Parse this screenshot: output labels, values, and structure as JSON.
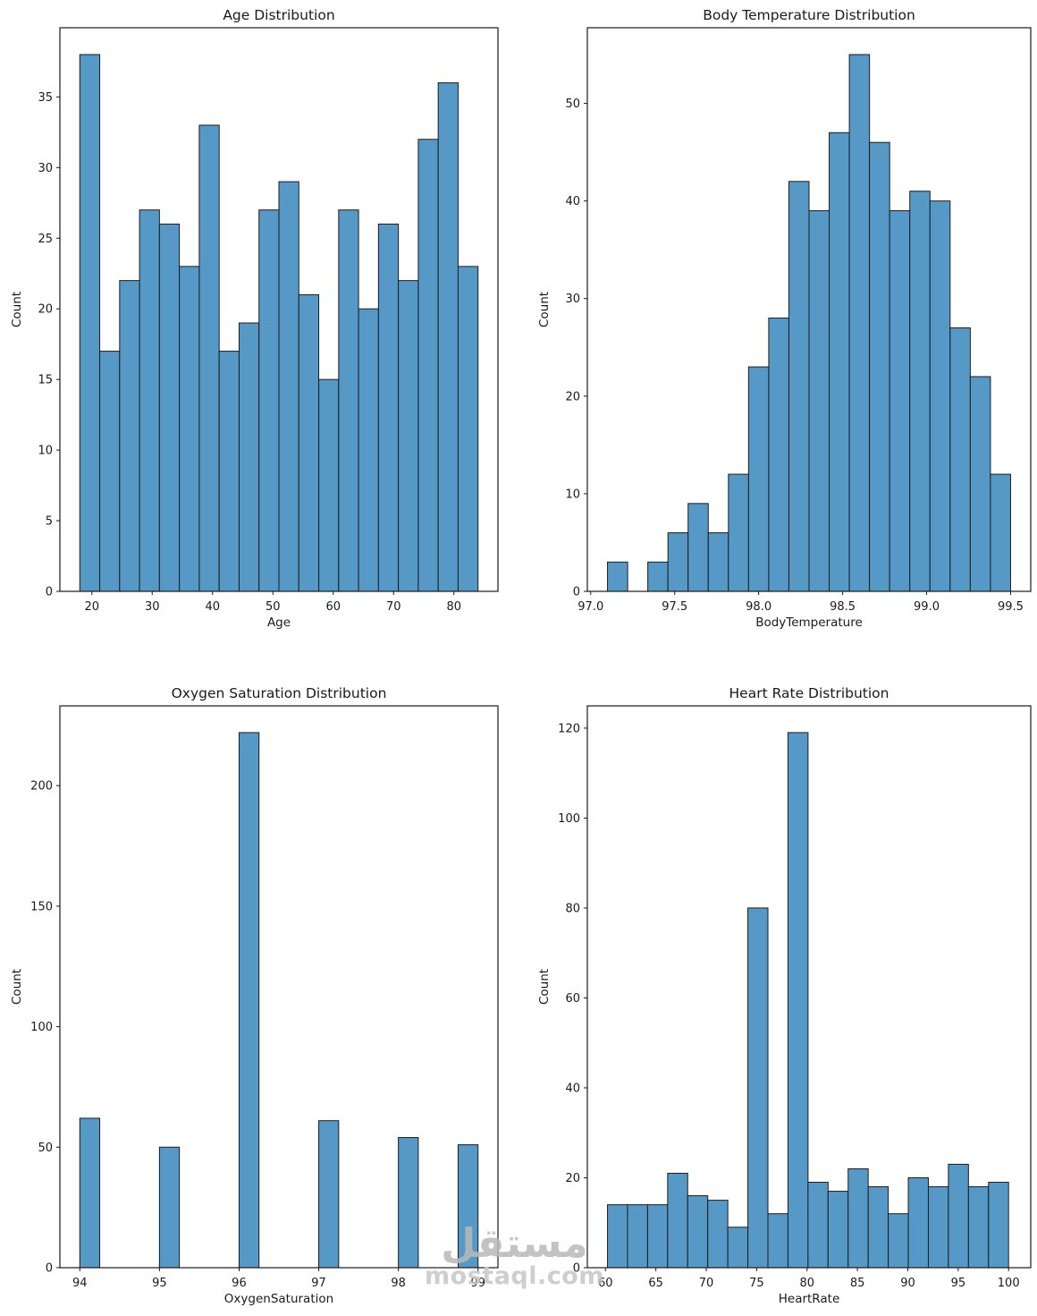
{
  "figure": {
    "background": "#ffffff",
    "bar_fill": "#5799c6",
    "bar_edge": "#1c1c1c",
    "ink": "#1a1a1a"
  },
  "watermark": {
    "arabic": "مستقل",
    "latin": "mostaql.com"
  },
  "chart_data": [
    {
      "type": "bar",
      "title": "Age Distribution",
      "xlabel": "Age",
      "ylabel": "Count",
      "bins": {
        "start": 18,
        "width": 3.3
      },
      "values": [
        38,
        17,
        22,
        27,
        26,
        23,
        33,
        17,
        19,
        27,
        29,
        21,
        15,
        27,
        20,
        26,
        22,
        32,
        36,
        23
      ],
      "xlim": [
        14.7,
        87.3
      ],
      "ylim": [
        0,
        39.9
      ],
      "xticks": [
        20,
        30,
        40,
        50,
        60,
        70,
        80
      ],
      "xtick_labels": [
        "20",
        "30",
        "40",
        "50",
        "60",
        "70",
        "80"
      ],
      "yticks": [
        0,
        5,
        10,
        15,
        20,
        25,
        30,
        35
      ],
      "ytick_labels": [
        "0",
        "5",
        "10",
        "15",
        "20",
        "25",
        "30",
        "35"
      ],
      "grid": false,
      "legend": "none"
    },
    {
      "type": "bar",
      "title": "Body Temperature Distribution",
      "xlabel": "BodyTemperature",
      "ylabel": "Count",
      "bins": {
        "start": 97.1,
        "width": 0.12
      },
      "values": [
        3,
        0,
        3,
        6,
        9,
        6,
        12,
        23,
        28,
        42,
        39,
        47,
        55,
        46,
        39,
        41,
        40,
        27,
        22,
        12
      ],
      "xlim": [
        96.98,
        99.62
      ],
      "ylim": [
        0,
        57.75
      ],
      "xticks": [
        97.0,
        97.5,
        98.0,
        98.5,
        99.0,
        99.5
      ],
      "xtick_labels": [
        "97.0",
        "97.5",
        "98.0",
        "98.5",
        "99.0",
        "99.5"
      ],
      "yticks": [
        0,
        10,
        20,
        30,
        40,
        50
      ],
      "ytick_labels": [
        "0",
        "10",
        "20",
        "30",
        "40",
        "50"
      ],
      "grid": false,
      "legend": "none"
    },
    {
      "type": "bar",
      "title": "Oxygen Saturation Distribution",
      "xlabel": "OxygenSaturation",
      "ylabel": "Count",
      "bars": [
        [
          94.0,
          94.25,
          62
        ],
        [
          95.0,
          95.25,
          50
        ],
        [
          96.0,
          96.25,
          222
        ],
        [
          97.0,
          97.25,
          61
        ],
        [
          98.0,
          98.25,
          54
        ],
        [
          98.75,
          99.0,
          51
        ]
      ],
      "xlim": [
        93.75,
        99.25
      ],
      "ylim": [
        0,
        233.1
      ],
      "xticks": [
        94,
        95,
        96,
        97,
        98,
        99
      ],
      "xtick_labels": [
        "94",
        "95",
        "96",
        "97",
        "98",
        "99"
      ],
      "yticks": [
        0,
        50,
        100,
        150,
        200
      ],
      "ytick_labels": [
        "0",
        "50",
        "100",
        "150",
        "200"
      ],
      "grid": false,
      "legend": "none"
    },
    {
      "type": "bar",
      "title": "Heart Rate Distribution",
      "xlabel": "HeartRate",
      "ylabel": "Count",
      "bins": {
        "start": 60.2,
        "width": 1.99
      },
      "values": [
        14,
        14,
        14,
        21,
        16,
        15,
        9,
        80,
        12,
        119,
        19,
        17,
        22,
        18,
        12,
        20,
        18,
        23,
        18,
        19
      ],
      "xlim": [
        58.2,
        102.2
      ],
      "ylim": [
        0,
        124.95
      ],
      "xticks": [
        60,
        65,
        70,
        75,
        80,
        85,
        90,
        95,
        100
      ],
      "xtick_labels": [
        "60",
        "65",
        "70",
        "75",
        "80",
        "85",
        "90",
        "95",
        "100"
      ],
      "yticks": [
        0,
        20,
        40,
        60,
        80,
        100,
        120
      ],
      "ytick_labels": [
        "0",
        "20",
        "40",
        "60",
        "80",
        "100",
        "120"
      ],
      "grid": false,
      "legend": "none"
    }
  ]
}
